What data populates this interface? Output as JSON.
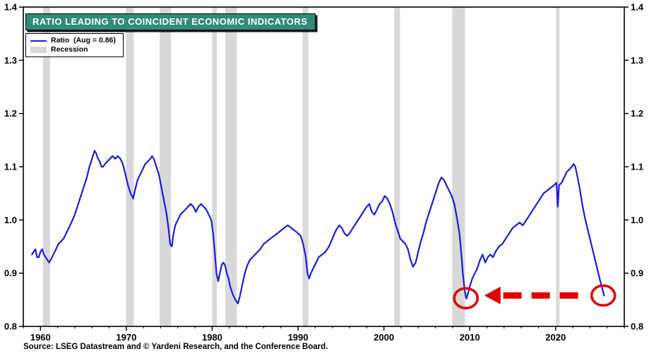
{
  "chart_data": {
    "type": "line",
    "title": "RATIO LEADING TO COINCIDENT ECONOMIC INDICATORS",
    "source": "Source: LSEG Datastream and © Yardeni Research, and the Conference Board.",
    "xlabel": "",
    "ylabel": "",
    "xlim": [
      1958,
      2028
    ],
    "ylim": [
      0.8,
      1.4
    ],
    "xticks": [
      1960,
      1970,
      1980,
      1990,
      2000,
      2010,
      2020
    ],
    "yticks": [
      0.8,
      0.9,
      1.0,
      1.1,
      1.2,
      1.3,
      1.4
    ],
    "grid": false,
    "legend_position": "top-left",
    "legend": [
      {
        "label": "Ratio  (Aug = 0.86)",
        "type": "line"
      },
      {
        "label": "Recession",
        "type": "band"
      }
    ],
    "colors": {
      "line": "#1b1bdd",
      "recession": "#d8d8d8",
      "title_bg": "#2e8c78",
      "title_text": "#ffffff",
      "annotation": "#e00000",
      "axis": "#000000"
    },
    "recessions": [
      [
        1960.29,
        1961.12
      ],
      [
        1969.96,
        1970.87
      ],
      [
        1973.87,
        1975.21
      ],
      [
        1980.0,
        1980.54
      ],
      [
        1981.54,
        1982.87
      ],
      [
        1990.54,
        1991.21
      ],
      [
        2001.21,
        2001.87
      ],
      [
        2007.96,
        2009.46
      ],
      [
        2020.05,
        2020.45
      ]
    ],
    "series": [
      {
        "name": "Ratio",
        "color": "#1b1bdd",
        "points": [
          [
            1959.0,
            0.935
          ],
          [
            1959.2,
            0.94
          ],
          [
            1959.4,
            0.945
          ],
          [
            1959.6,
            0.93
          ],
          [
            1959.8,
            0.93
          ],
          [
            1960.0,
            0.94
          ],
          [
            1960.2,
            0.945
          ],
          [
            1960.4,
            0.935
          ],
          [
            1960.6,
            0.93
          ],
          [
            1960.8,
            0.925
          ],
          [
            1961.0,
            0.92
          ],
          [
            1961.2,
            0.925
          ],
          [
            1961.5,
            0.935
          ],
          [
            1961.8,
            0.945
          ],
          [
            1962.1,
            0.955
          ],
          [
            1962.4,
            0.96
          ],
          [
            1962.7,
            0.965
          ],
          [
            1963.0,
            0.975
          ],
          [
            1963.3,
            0.985
          ],
          [
            1963.6,
            0.995
          ],
          [
            1964.0,
            1.01
          ],
          [
            1964.4,
            1.03
          ],
          [
            1964.8,
            1.05
          ],
          [
            1965.1,
            1.065
          ],
          [
            1965.4,
            1.08
          ],
          [
            1965.7,
            1.1
          ],
          [
            1966.0,
            1.115
          ],
          [
            1966.3,
            1.13
          ],
          [
            1966.5,
            1.125
          ],
          [
            1966.7,
            1.115
          ],
          [
            1966.9,
            1.11
          ],
          [
            1967.1,
            1.1
          ],
          [
            1967.3,
            1.1
          ],
          [
            1967.5,
            1.105
          ],
          [
            1967.8,
            1.11
          ],
          [
            1968.1,
            1.115
          ],
          [
            1968.4,
            1.12
          ],
          [
            1968.7,
            1.115
          ],
          [
            1969.0,
            1.12
          ],
          [
            1969.3,
            1.115
          ],
          [
            1969.6,
            1.105
          ],
          [
            1969.9,
            1.085
          ],
          [
            1970.2,
            1.065
          ],
          [
            1970.5,
            1.05
          ],
          [
            1970.8,
            1.04
          ],
          [
            1971.0,
            1.055
          ],
          [
            1971.3,
            1.075
          ],
          [
            1971.6,
            1.085
          ],
          [
            1971.9,
            1.095
          ],
          [
            1972.2,
            1.105
          ],
          [
            1972.5,
            1.11
          ],
          [
            1972.8,
            1.115
          ],
          [
            1973.0,
            1.12
          ],
          [
            1973.2,
            1.115
          ],
          [
            1973.5,
            1.1
          ],
          [
            1973.8,
            1.085
          ],
          [
            1974.1,
            1.06
          ],
          [
            1974.4,
            1.035
          ],
          [
            1974.7,
            1.01
          ],
          [
            1974.9,
            0.985
          ],
          [
            1975.1,
            0.955
          ],
          [
            1975.3,
            0.95
          ],
          [
            1975.5,
            0.975
          ],
          [
            1975.7,
            0.99
          ],
          [
            1976.0,
            1.0
          ],
          [
            1976.3,
            1.01
          ],
          [
            1976.6,
            1.015
          ],
          [
            1976.9,
            1.02
          ],
          [
            1977.2,
            1.025
          ],
          [
            1977.5,
            1.03
          ],
          [
            1977.8,
            1.025
          ],
          [
            1978.1,
            1.015
          ],
          [
            1978.4,
            1.025
          ],
          [
            1978.7,
            1.03
          ],
          [
            1979.0,
            1.025
          ],
          [
            1979.3,
            1.02
          ],
          [
            1979.6,
            1.01
          ],
          [
            1979.9,
            1.0
          ],
          [
            1980.1,
            0.975
          ],
          [
            1980.3,
            0.94
          ],
          [
            1980.5,
            0.9
          ],
          [
            1980.7,
            0.885
          ],
          [
            1980.9,
            0.9
          ],
          [
            1981.1,
            0.915
          ],
          [
            1981.3,
            0.92
          ],
          [
            1981.5,
            0.915
          ],
          [
            1981.7,
            0.9
          ],
          [
            1981.9,
            0.89
          ],
          [
            1982.1,
            0.875
          ],
          [
            1982.4,
            0.86
          ],
          [
            1982.7,
            0.85
          ],
          [
            1983.0,
            0.843
          ],
          [
            1983.2,
            0.855
          ],
          [
            1983.4,
            0.87
          ],
          [
            1983.6,
            0.885
          ],
          [
            1983.8,
            0.9
          ],
          [
            1984.1,
            0.915
          ],
          [
            1984.4,
            0.925
          ],
          [
            1984.7,
            0.93
          ],
          [
            1985.0,
            0.935
          ],
          [
            1985.3,
            0.94
          ],
          [
            1985.6,
            0.945
          ],
          [
            1986.0,
            0.955
          ],
          [
            1986.4,
            0.96
          ],
          [
            1986.8,
            0.965
          ],
          [
            1987.2,
            0.97
          ],
          [
            1987.6,
            0.975
          ],
          [
            1988.0,
            0.98
          ],
          [
            1988.4,
            0.985
          ],
          [
            1988.8,
            0.99
          ],
          [
            1989.2,
            0.985
          ],
          [
            1989.6,
            0.98
          ],
          [
            1990.0,
            0.975
          ],
          [
            1990.3,
            0.97
          ],
          [
            1990.6,
            0.955
          ],
          [
            1990.9,
            0.93
          ],
          [
            1991.1,
            0.9
          ],
          [
            1991.3,
            0.89
          ],
          [
            1991.5,
            0.9
          ],
          [
            1991.8,
            0.91
          ],
          [
            1992.1,
            0.92
          ],
          [
            1992.4,
            0.93
          ],
          [
            1992.8,
            0.935
          ],
          [
            1993.2,
            0.94
          ],
          [
            1993.6,
            0.95
          ],
          [
            1994.0,
            0.965
          ],
          [
            1994.4,
            0.98
          ],
          [
            1994.8,
            0.99
          ],
          [
            1995.1,
            0.985
          ],
          [
            1995.4,
            0.975
          ],
          [
            1995.7,
            0.97
          ],
          [
            1996.0,
            0.975
          ],
          [
            1996.4,
            0.985
          ],
          [
            1996.8,
            0.995
          ],
          [
            1997.2,
            1.005
          ],
          [
            1997.6,
            1.015
          ],
          [
            1998.0,
            1.025
          ],
          [
            1998.3,
            1.03
          ],
          [
            1998.6,
            1.015
          ],
          [
            1998.9,
            1.01
          ],
          [
            1999.2,
            1.02
          ],
          [
            1999.5,
            1.03
          ],
          [
            1999.8,
            1.035
          ],
          [
            2000.1,
            1.045
          ],
          [
            2000.4,
            1.04
          ],
          [
            2000.7,
            1.03
          ],
          [
            2001.0,
            1.015
          ],
          [
            2001.3,
            0.995
          ],
          [
            2001.6,
            0.98
          ],
          [
            2001.9,
            0.965
          ],
          [
            2002.2,
            0.96
          ],
          [
            2002.5,
            0.955
          ],
          [
            2002.8,
            0.945
          ],
          [
            2003.1,
            0.925
          ],
          [
            2003.4,
            0.912
          ],
          [
            2003.7,
            0.92
          ],
          [
            2004.0,
            0.94
          ],
          [
            2004.3,
            0.96
          ],
          [
            2004.6,
            0.975
          ],
          [
            2004.9,
            0.995
          ],
          [
            2005.2,
            1.01
          ],
          [
            2005.5,
            1.025
          ],
          [
            2005.8,
            1.04
          ],
          [
            2006.1,
            1.055
          ],
          [
            2006.4,
            1.07
          ],
          [
            2006.7,
            1.08
          ],
          [
            2007.0,
            1.075
          ],
          [
            2007.3,
            1.065
          ],
          [
            2007.6,
            1.055
          ],
          [
            2007.9,
            1.045
          ],
          [
            2008.2,
            1.03
          ],
          [
            2008.5,
            1.005
          ],
          [
            2008.8,
            0.975
          ],
          [
            2009.0,
            0.94
          ],
          [
            2009.2,
            0.9
          ],
          [
            2009.4,
            0.868
          ],
          [
            2009.6,
            0.852
          ],
          [
            2009.8,
            0.862
          ],
          [
            2010.0,
            0.875
          ],
          [
            2010.3,
            0.89
          ],
          [
            2010.6,
            0.9
          ],
          [
            2010.9,
            0.91
          ],
          [
            2011.2,
            0.925
          ],
          [
            2011.5,
            0.935
          ],
          [
            2011.8,
            0.92
          ],
          [
            2012.1,
            0.93
          ],
          [
            2012.4,
            0.935
          ],
          [
            2012.7,
            0.93
          ],
          [
            2013.0,
            0.94
          ],
          [
            2013.4,
            0.95
          ],
          [
            2013.8,
            0.955
          ],
          [
            2014.2,
            0.965
          ],
          [
            2014.6,
            0.975
          ],
          [
            2015.0,
            0.985
          ],
          [
            2015.4,
            0.99
          ],
          [
            2015.8,
            0.995
          ],
          [
            2016.2,
            0.99
          ],
          [
            2016.6,
            1.0
          ],
          [
            2017.0,
            1.01
          ],
          [
            2017.4,
            1.02
          ],
          [
            2017.8,
            1.03
          ],
          [
            2018.2,
            1.04
          ],
          [
            2018.6,
            1.05
          ],
          [
            2019.0,
            1.055
          ],
          [
            2019.4,
            1.06
          ],
          [
            2019.8,
            1.065
          ],
          [
            2020.1,
            1.07
          ],
          [
            2020.25,
            1.025
          ],
          [
            2020.4,
            1.065
          ],
          [
            2020.7,
            1.07
          ],
          [
            2021.0,
            1.08
          ],
          [
            2021.3,
            1.09
          ],
          [
            2021.6,
            1.095
          ],
          [
            2021.9,
            1.1
          ],
          [
            2022.1,
            1.105
          ],
          [
            2022.3,
            1.1
          ],
          [
            2022.5,
            1.085
          ],
          [
            2022.8,
            1.06
          ],
          [
            2023.1,
            1.03
          ],
          [
            2023.4,
            1.005
          ],
          [
            2023.7,
            0.985
          ],
          [
            2024.0,
            0.965
          ],
          [
            2024.3,
            0.945
          ],
          [
            2024.6,
            0.925
          ],
          [
            2024.9,
            0.905
          ],
          [
            2025.2,
            0.885
          ],
          [
            2025.45,
            0.87
          ],
          [
            2025.65,
            0.858
          ]
        ]
      }
    ],
    "annotations": {
      "circles": [
        {
          "x": 2009.55,
          "y": 0.853
        },
        {
          "x": 2025.55,
          "y": 0.858
        }
      ],
      "arrow": {
        "tip_x": 2011.7,
        "from_x": 2013.9,
        "to_x": 2023.5,
        "y": 0.858
      }
    }
  }
}
